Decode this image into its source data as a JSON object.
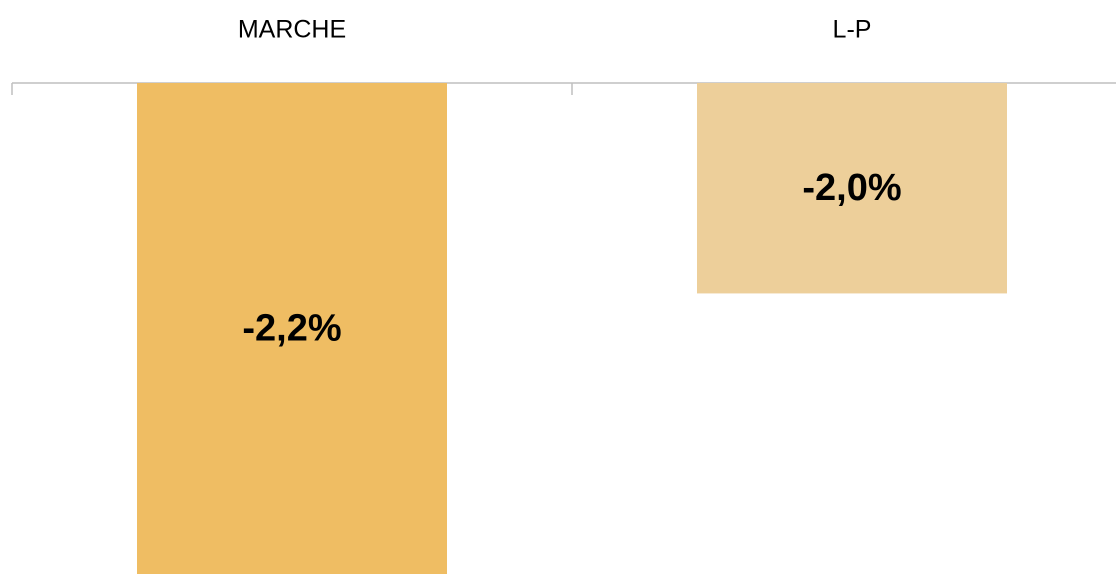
{
  "chart_data": {
    "type": "bar",
    "categories": [
      "MARCHE",
      "L-P"
    ],
    "values": [
      -2.2,
      -2.0
    ],
    "value_labels": [
      "-2,2%",
      "-2,0%"
    ],
    "colors": [
      "#efbd63",
      "#edcf9a"
    ],
    "ylim": [
      -2.2,
      -1.85
    ]
  }
}
